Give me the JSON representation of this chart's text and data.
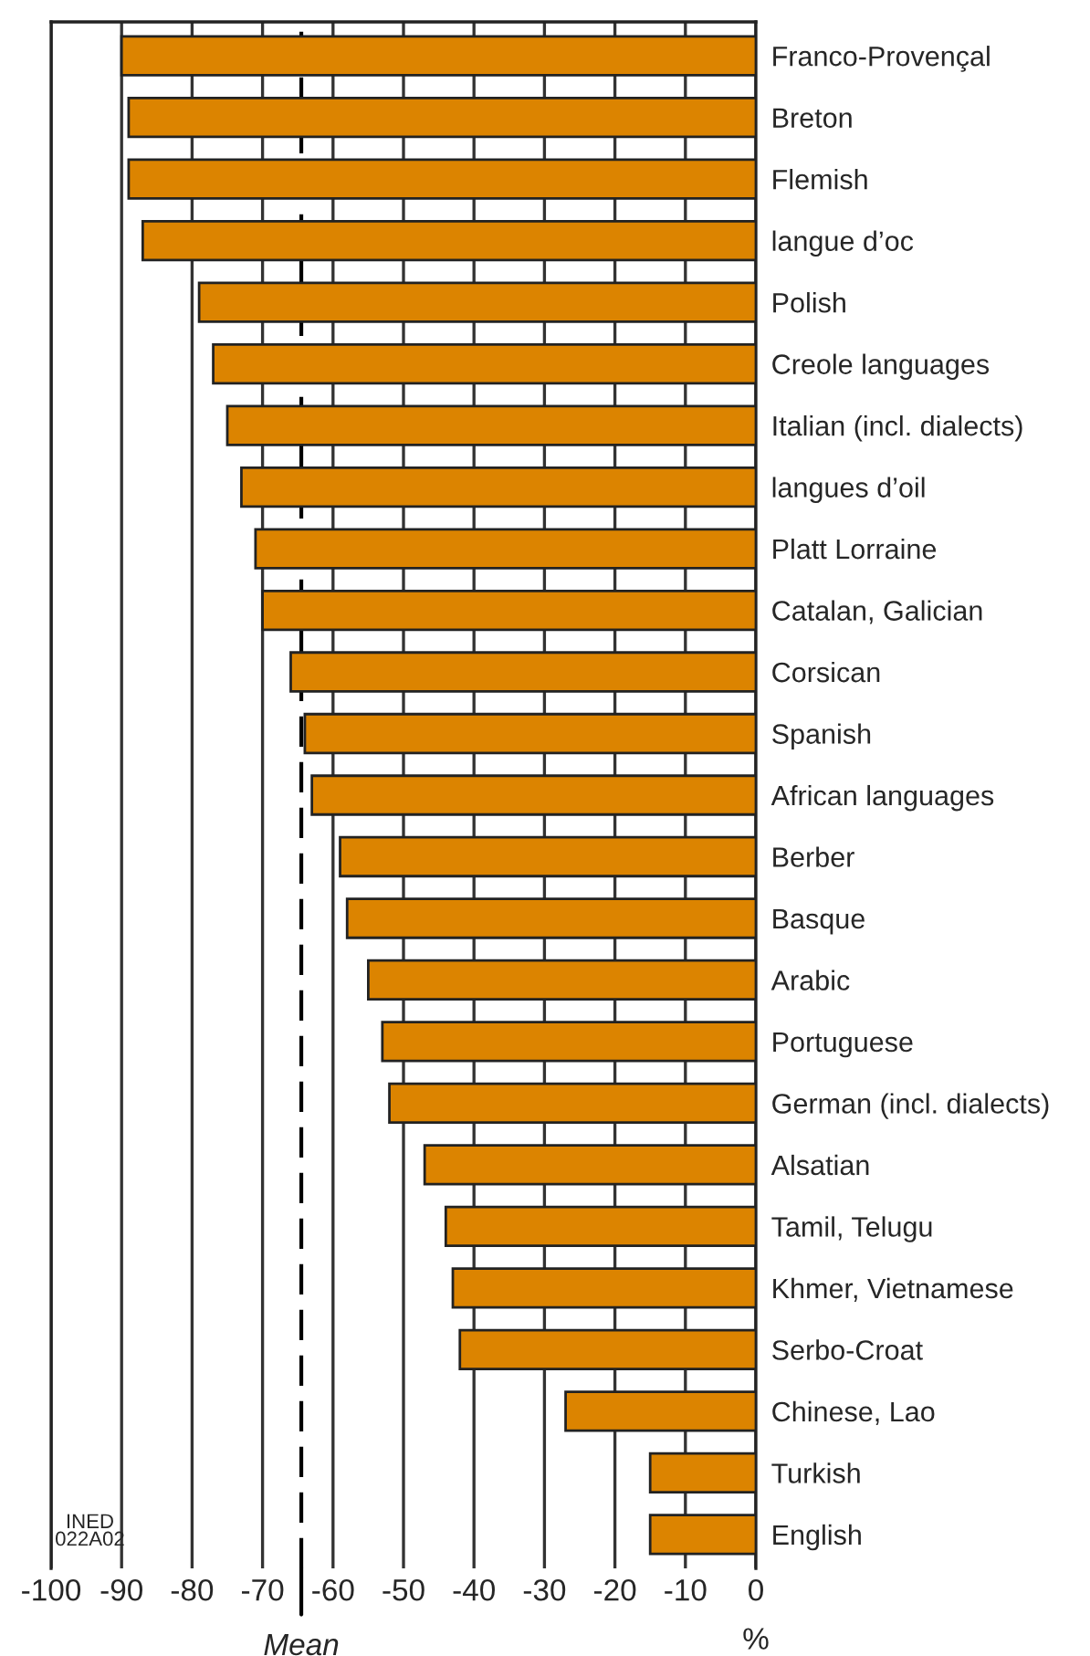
{
  "chart_data": {
    "type": "bar",
    "orientation": "horizontal",
    "xlabel": "%",
    "categories": [
      "Franco-Provençal",
      "Breton",
      "Flemish",
      "langue d’oc",
      "Polish",
      "Creole languages",
      "Italian (incl. dialects)",
      "langues d’oil",
      "Platt Lorraine",
      "Catalan, Galician",
      "Corsican",
      "Spanish",
      "African languages",
      "Berber",
      "Basque",
      "Arabic",
      "Portuguese",
      "German (incl. dialects)",
      "Alsatian",
      "Tamil, Telugu",
      "Khmer, Vietnamese",
      "Serbo-Croat",
      "Chinese, Lao",
      "Turkish",
      "English"
    ],
    "series": [
      {
        "color": "#dc8400",
        "values": [
          -90,
          -89,
          -89,
          -87,
          -79,
          -77,
          -75,
          -73,
          -71,
          -70,
          -66,
          -64,
          -63,
          -59,
          -58,
          -55,
          -53,
          -52,
          -47,
          -44,
          -43,
          -42,
          -27,
          -15,
          -15
        ]
      }
    ],
    "xlim": [
      -100,
      0
    ],
    "xticks": [
      -100,
      -90,
      -80,
      -70,
      -60,
      -50,
      -40,
      -30,
      -20,
      -10,
      0
    ],
    "ref_lines": [
      {
        "axis": "x",
        "value": -64.5,
        "label": "Mean",
        "color": "#000000",
        "line_style": "dashed"
      }
    ],
    "annotations": [
      "INED\n022A02"
    ],
    "grid": "x",
    "legend": false
  }
}
